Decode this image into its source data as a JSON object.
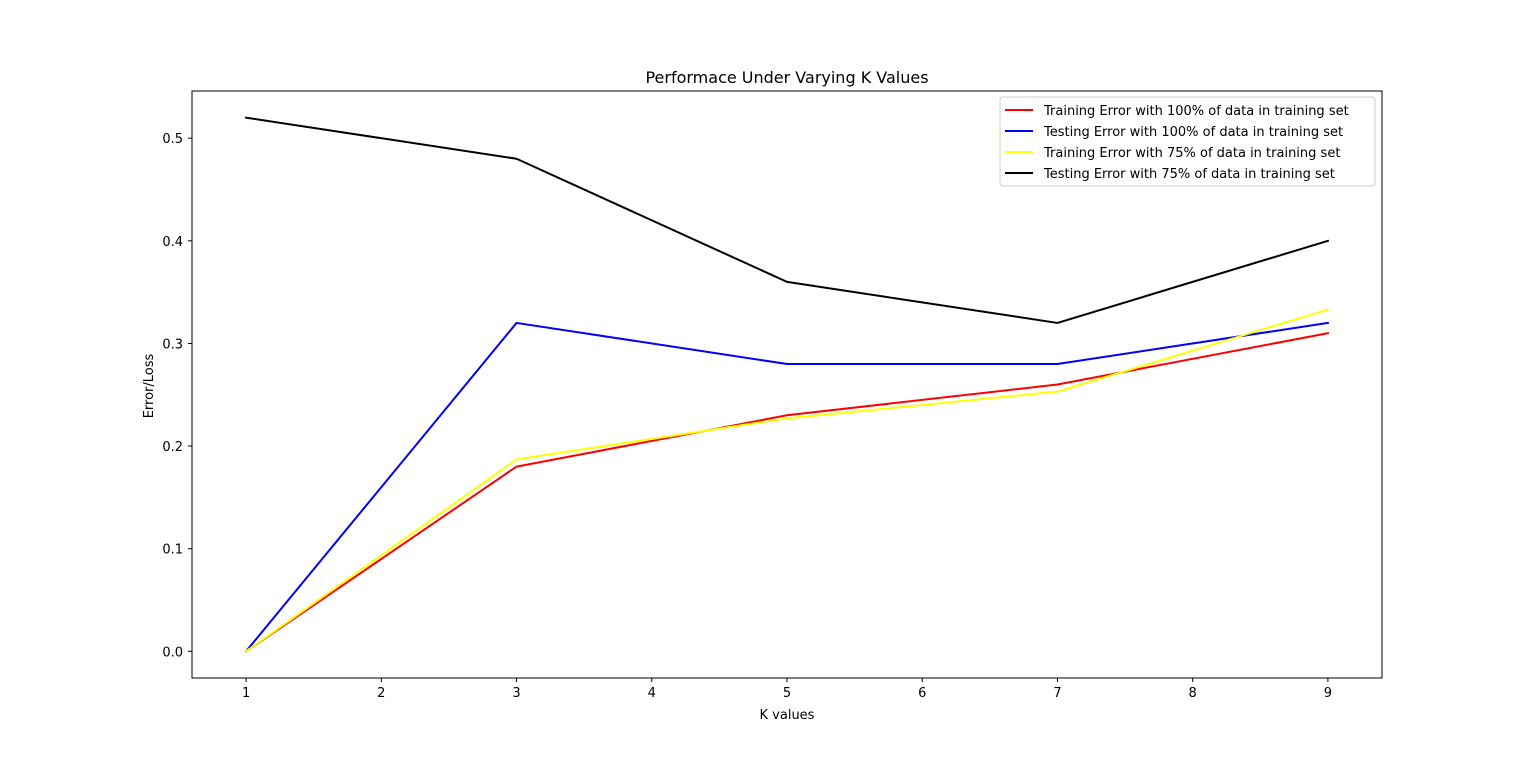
{
  "chart_data": {
    "type": "line",
    "title": "Performace Under Varying K Values",
    "xlabel": "K values",
    "ylabel": "Error/Loss",
    "x": [
      1,
      3,
      5,
      7,
      9
    ],
    "xlim": [
      0.6,
      9.4
    ],
    "ylim": [
      -0.026,
      0.546
    ],
    "xticks": [
      1,
      2,
      3,
      4,
      5,
      6,
      7,
      8,
      9
    ],
    "yticks": [
      0.0,
      0.1,
      0.2,
      0.3,
      0.4,
      0.5
    ],
    "ytick_labels": [
      "0.0",
      "0.1",
      "0.2",
      "0.3",
      "0.4",
      "0.5"
    ],
    "grid": false,
    "legend_position": "top-right",
    "series": [
      {
        "name": "Training Error with 100% of data in training set",
        "color": "#ff0000",
        "values": [
          0.0,
          0.18,
          0.23,
          0.26,
          0.31
        ]
      },
      {
        "name": "Testing Error with 100% of data in training set",
        "color": "#0000ff",
        "values": [
          0.0,
          0.32,
          0.28,
          0.28,
          0.32
        ]
      },
      {
        "name": "Training Error with 75% of data in training set",
        "color": "#ffff00",
        "values": [
          0.0,
          0.187,
          0.227,
          0.253,
          0.333
        ]
      },
      {
        "name": "Testing Error with 75% of data in training set",
        "color": "#000000",
        "values": [
          0.52,
          0.48,
          0.36,
          0.32,
          0.4
        ]
      }
    ]
  }
}
